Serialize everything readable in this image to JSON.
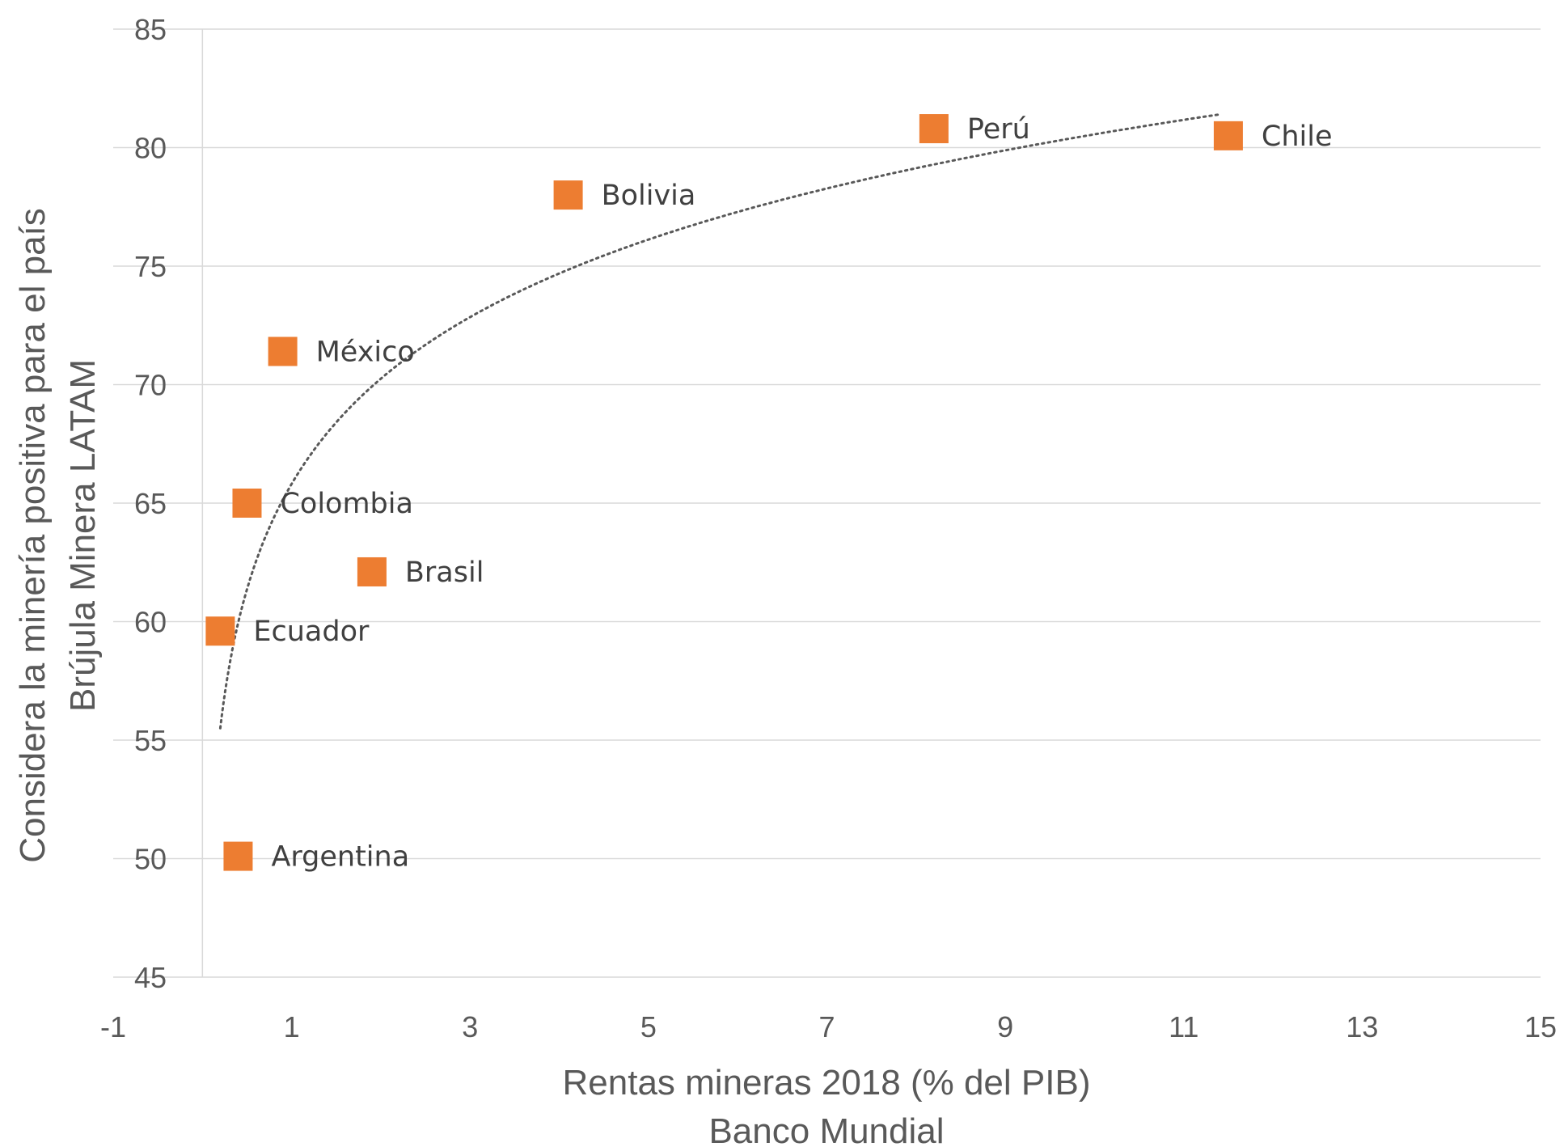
{
  "chart_data": {
    "type": "scatter",
    "title": "",
    "xlabel": [
      "Rentas mineras 2018 (% del PIB)",
      "Banco Mundial"
    ],
    "ylabel": [
      "Considera la minería positiva para el país",
      "Brújula Minera LATAM"
    ],
    "xlim": [
      -1,
      15
    ],
    "ylim": [
      45,
      85
    ],
    "xticks": [
      -1,
      1,
      3,
      5,
      7,
      9,
      11,
      13,
      15
    ],
    "yticks": [
      45,
      50,
      55,
      60,
      65,
      70,
      75,
      80,
      85
    ],
    "grid": "horizontal",
    "legend": "none",
    "marker": "square",
    "colors": {
      "marker": "#ED7D31",
      "grid": "#D9D9D9",
      "trend": "#595959",
      "text": "#595959"
    },
    "points": [
      {
        "label": "Perú",
        "x": 8.2,
        "y": 80.8
      },
      {
        "label": "Chile",
        "x": 11.5,
        "y": 80.5
      },
      {
        "label": "Bolivia",
        "x": 4.1,
        "y": 78.0
      },
      {
        "label": "México",
        "x": 0.9,
        "y": 71.4
      },
      {
        "label": "Colombia",
        "x": 0.5,
        "y": 65.0
      },
      {
        "label": "Brasil",
        "x": 1.9,
        "y": 62.1
      },
      {
        "label": "Ecuador",
        "x": 0.2,
        "y": 59.6
      },
      {
        "label": "Argentina",
        "x": 0.4,
        "y": 50.1
      }
    ],
    "trendline": {
      "type": "logarithmic",
      "style": "dotted",
      "x_range": [
        0.2,
        11.4
      ],
      "y_range": [
        55.5,
        81.4
      ]
    }
  }
}
